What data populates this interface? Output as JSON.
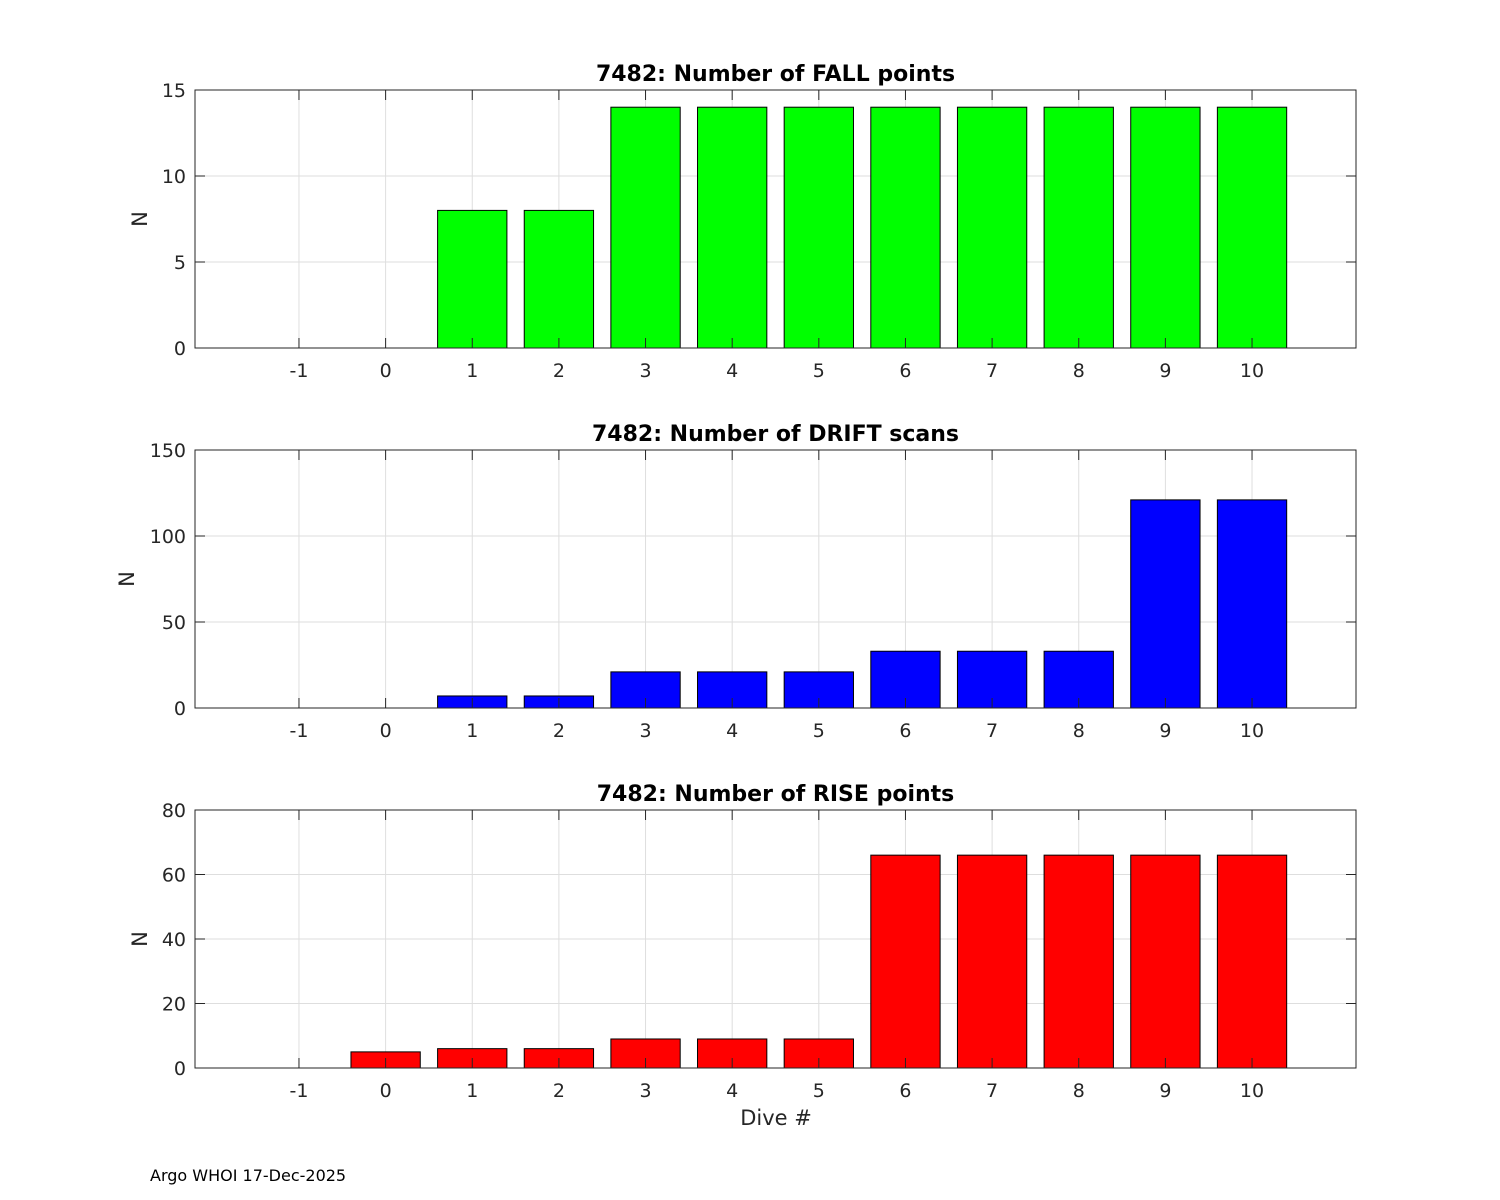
{
  "chart_data": [
    {
      "type": "bar",
      "title": "7482: Number of FALL points",
      "xlabel": "",
      "ylabel": "N",
      "categories": [
        "-1",
        "0",
        "1",
        "2",
        "3",
        "4",
        "5",
        "6",
        "7",
        "8",
        "9",
        "10"
      ],
      "values": [
        0,
        0,
        8,
        8,
        14,
        14,
        14,
        14,
        14,
        14,
        14,
        14
      ],
      "ylim": [
        0,
        15
      ],
      "yticks": [
        0,
        5,
        10,
        15
      ],
      "color": "#00ff00",
      "grid": true
    },
    {
      "type": "bar",
      "title": "7482: Number of DRIFT scans",
      "xlabel": "",
      "ylabel": "N",
      "categories": [
        "-1",
        "0",
        "1",
        "2",
        "3",
        "4",
        "5",
        "6",
        "7",
        "8",
        "9",
        "10"
      ],
      "values": [
        0,
        0,
        7,
        7,
        21,
        21,
        21,
        33,
        33,
        33,
        121,
        121
      ],
      "ylim": [
        0,
        150
      ],
      "yticks": [
        0,
        50,
        100,
        150
      ],
      "color": "#0000ff",
      "grid": true
    },
    {
      "type": "bar",
      "title": "7482: Number of RISE points",
      "xlabel": "Dive #",
      "ylabel": "N",
      "categories": [
        "-1",
        "0",
        "1",
        "2",
        "3",
        "4",
        "5",
        "6",
        "7",
        "8",
        "9",
        "10"
      ],
      "values": [
        0,
        5,
        6,
        6,
        9,
        9,
        9,
        66,
        66,
        66,
        66,
        66
      ],
      "ylim": [
        0,
        80
      ],
      "yticks": [
        0,
        20,
        40,
        60,
        80
      ],
      "color": "#ff0000",
      "grid": true
    }
  ],
  "footer": "Argo WHOI 17-Dec-2025"
}
